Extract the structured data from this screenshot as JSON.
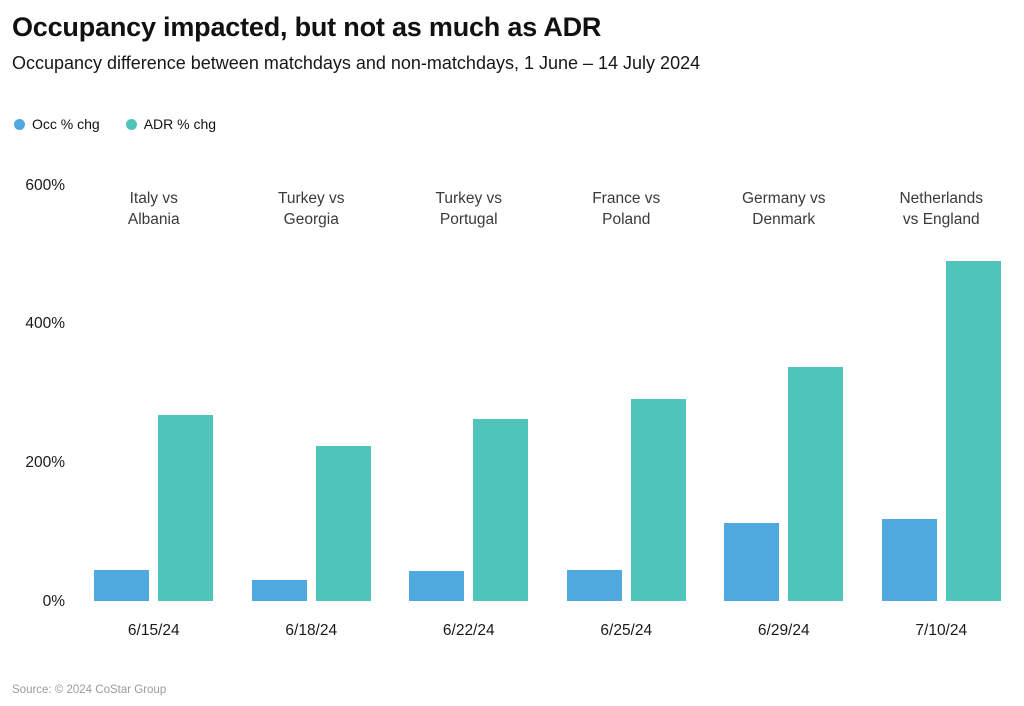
{
  "header": {
    "title": "Occupancy impacted, but not as much as ADR",
    "subtitle": "Occupancy difference between matchdays and non-matchdays, 1 June – 14 July 2024"
  },
  "legend": {
    "items": [
      {
        "label": "Occ % chg",
        "color": "#4FA9DE"
      },
      {
        "label": "ADR % chg",
        "color": "#4EC4BB"
      }
    ]
  },
  "footer": {
    "source": "Source: © 2024 CoStar Group"
  },
  "colors": {
    "occ_bar": "#4FA9DE",
    "adr_bar": "#4EC4BB",
    "text_dark": "#111111",
    "text_muted": "#9b9b9b"
  },
  "chart_data": {
    "type": "bar",
    "title": "Occupancy impacted, but not as much as ADR",
    "subtitle": "Occupancy difference between matchdays and non-matchdays, 1 June – 14 July 2024",
    "categories": [
      "6/15/24",
      "6/18/24",
      "6/22/24",
      "6/25/24",
      "6/29/24",
      "7/10/24"
    ],
    "group_labels": [
      "Italy vs\nAlbania",
      "Turkey vs\nGeorgia",
      "Turkey vs\nPortugal",
      "France vs\nPoland",
      "Germany vs\nDenmark",
      "Netherlands\nvs England"
    ],
    "series": [
      {
        "name": "Occ % chg",
        "color": "#4FA9DE",
        "values": [
          45,
          30,
          43,
          45,
          112,
          118
        ]
      },
      {
        "name": "ADR % chg",
        "color": "#4EC4BB",
        "values": [
          269,
          224,
          262,
          292,
          337,
          490
        ]
      }
    ],
    "xlabel": "",
    "ylabel": "",
    "ylim": [
      0,
      600
    ],
    "yticks": [
      0,
      200,
      400,
      600
    ],
    "ytick_suffix": "%",
    "grid": false,
    "legend_position": "top-left"
  }
}
